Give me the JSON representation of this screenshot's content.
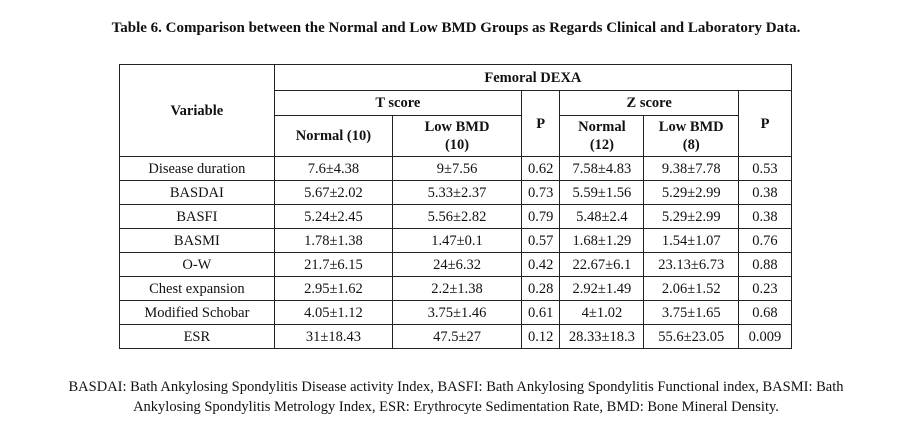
{
  "caption": "Table 6. Comparison between the Normal and Low BMD Groups as Regards Clinical and Laboratory Data.",
  "header": {
    "variable": "Variable",
    "group": "Femoral DEXA",
    "t_score": "T score",
    "z_score": "Z score",
    "t_normal": "Normal (10)",
    "t_low_line1": "Low BMD",
    "t_low_line2": "(10)",
    "t_p": "P",
    "z_normal_line1": "Normal",
    "z_normal_line2": "(12)",
    "z_low_line1": "Low BMD",
    "z_low_line2": "(8)",
    "z_p": "P"
  },
  "rows": [
    {
      "variable": "Disease duration",
      "t_normal": "7.6±4.38",
      "t_low": "9±7.56",
      "t_p": "0.62",
      "z_normal": "7.58±4.83",
      "z_low": "9.38±7.78",
      "z_p": "0.53"
    },
    {
      "variable": "BASDAI",
      "t_normal": "5.67±2.02",
      "t_low": "5.33±2.37",
      "t_p": "0.73",
      "z_normal": "5.59±1.56",
      "z_low": "5.29±2.99",
      "z_p": "0.38"
    },
    {
      "variable": "BASFI",
      "t_normal": "5.24±2.45",
      "t_low": "5.56±2.82",
      "t_p": "0.79",
      "z_normal": "5.48±2.4",
      "z_low": "5.29±2.99",
      "z_p": "0.38"
    },
    {
      "variable": "BASMI",
      "t_normal": "1.78±1.38",
      "t_low": "1.47±0.1",
      "t_p": "0.57",
      "z_normal": "1.68±1.29",
      "z_low": "1.54±1.07",
      "z_p": "0.76"
    },
    {
      "variable": "O-W",
      "t_normal": "21.7±6.15",
      "t_low": "24±6.32",
      "t_p": "0.42",
      "z_normal": "22.67±6.1",
      "z_low": "23.13±6.73",
      "z_p": "0.88"
    },
    {
      "variable": "Chest expansion",
      "t_normal": "2.95±1.62",
      "t_low": "2.2±1.38",
      "t_p": "0.28",
      "z_normal": "2.92±1.49",
      "z_low": "2.06±1.52",
      "z_p": "0.23"
    },
    {
      "variable": "Modified Schobar",
      "t_normal": "4.05±1.12",
      "t_low": "3.75±1.46",
      "t_p": "0.61",
      "z_normal": "4±1.02",
      "z_low": "3.75±1.65",
      "z_p": "0.68"
    },
    {
      "variable": "ESR",
      "t_normal": "31±18.43",
      "t_low": "47.5±27",
      "t_p": "0.12",
      "z_normal": "28.33±18.3",
      "z_low": "55.6±23.05",
      "z_p": "0.009"
    }
  ],
  "footnote": {
    "line1": "BASDAI: Bath Ankylosing Spondylitis Disease activity Index, BASFI: Bath Ankylosing Spondylitis Functional index, BASMI: Bath",
    "line2": "Ankylosing Spondylitis Metrology Index, ESR: Erythrocyte Sedimentation Rate, BMD: Bone Mineral Density."
  }
}
